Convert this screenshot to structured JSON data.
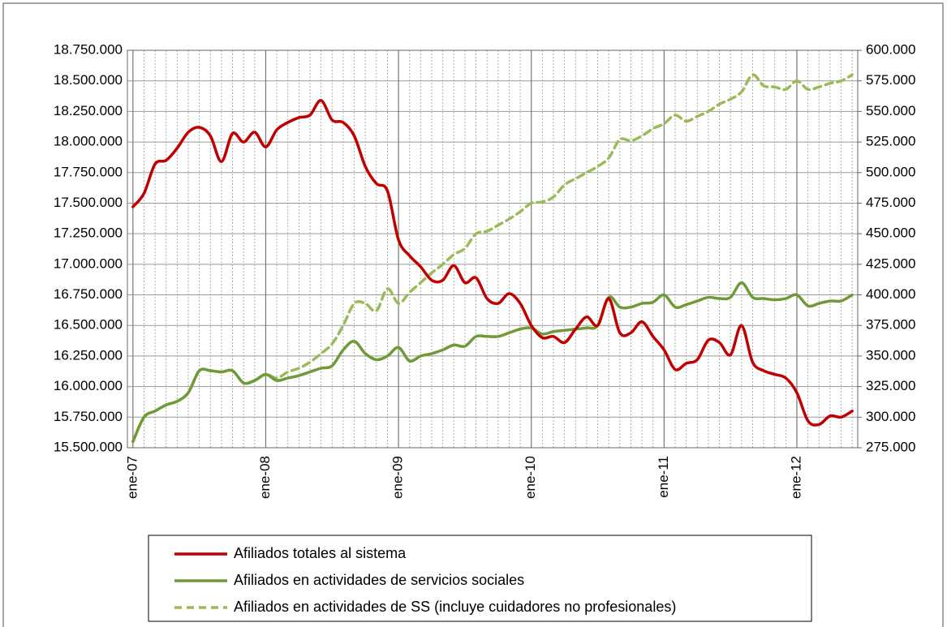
{
  "chart_data": {
    "type": "line",
    "categories": [
      "ene-07",
      null,
      null,
      null,
      null,
      null,
      null,
      null,
      null,
      null,
      null,
      null,
      "ene-08",
      null,
      null,
      null,
      null,
      null,
      null,
      null,
      null,
      null,
      null,
      null,
      "ene-09",
      null,
      null,
      null,
      null,
      null,
      null,
      null,
      null,
      null,
      null,
      null,
      "ene-10",
      null,
      null,
      null,
      null,
      null,
      null,
      null,
      null,
      null,
      null,
      null,
      "ene-11",
      null,
      null,
      null,
      null,
      null,
      null,
      null,
      null,
      null,
      null,
      null,
      "ene-12",
      null,
      null,
      null,
      null,
      null
    ],
    "ylim": [
      15500000,
      18750000
    ],
    "yticks": [
      {
        "value": 15500000,
        "label": "15.500.000"
      },
      {
        "value": 15750000,
        "label": "15.750.000"
      },
      {
        "value": 16000000,
        "label": "16.000.000"
      },
      {
        "value": 16250000,
        "label": "16.250.000"
      },
      {
        "value": 16500000,
        "label": "16.500.000"
      },
      {
        "value": 16750000,
        "label": "16.750.000"
      },
      {
        "value": 17000000,
        "label": "17.000.000"
      },
      {
        "value": 17250000,
        "label": "17.250.000"
      },
      {
        "value": 17500000,
        "label": "17.500.000"
      },
      {
        "value": 17750000,
        "label": "17.750.000"
      },
      {
        "value": 18000000,
        "label": "18.000.000"
      },
      {
        "value": 18250000,
        "label": "18.250.000"
      },
      {
        "value": 18500000,
        "label": "18.500.000"
      },
      {
        "value": 18750000,
        "label": "18.750.000"
      }
    ],
    "y2lim": [
      275000,
      600000
    ],
    "y2ticks": [
      {
        "value": 275000,
        "label": "275.000"
      },
      {
        "value": 300000,
        "label": "300.000"
      },
      {
        "value": 325000,
        "label": "325.000"
      },
      {
        "value": 350000,
        "label": "350.000"
      },
      {
        "value": 375000,
        "label": "375.000"
      },
      {
        "value": 400000,
        "label": "400.000"
      },
      {
        "value": 425000,
        "label": "425.000"
      },
      {
        "value": 450000,
        "label": "450.000"
      },
      {
        "value": 475000,
        "label": "475.000"
      },
      {
        "value": 500000,
        "label": "500.000"
      },
      {
        "value": 525000,
        "label": "525.000"
      },
      {
        "value": 550000,
        "label": "550.000"
      },
      {
        "value": 575000,
        "label": "575.000"
      },
      {
        "value": 600000,
        "label": "600.000"
      }
    ],
    "grid": true,
    "legend": "bottom",
    "series": [
      {
        "name": "Afiliados totales al sistema",
        "color": "#c00000",
        "style": "solid",
        "axis": "y",
        "values": [
          17470000,
          17580000,
          17820000,
          17850000,
          17950000,
          18080000,
          18120000,
          18050000,
          17840000,
          18070000,
          18000000,
          18080000,
          17960000,
          18100000,
          18160000,
          18200000,
          18220000,
          18340000,
          18180000,
          18160000,
          18050000,
          17800000,
          17660000,
          17600000,
          17200000,
          17070000,
          16980000,
          16870000,
          16870000,
          16990000,
          16850000,
          16890000,
          16720000,
          16680000,
          16760000,
          16680000,
          16500000,
          16400000,
          16410000,
          16360000,
          16470000,
          16570000,
          16500000,
          16720000,
          16440000,
          16440000,
          16530000,
          16410000,
          16300000,
          16140000,
          16190000,
          16220000,
          16380000,
          16360000,
          16260000,
          16500000,
          16200000,
          16130000,
          16100000,
          16070000,
          15950000,
          15720000,
          15690000,
          15760000,
          15750000,
          15800000
        ]
      },
      {
        "name": "Afiliados en actividades de servicios sociales",
        "color": "#6f9a37",
        "style": "solid",
        "axis": "y2",
        "values": [
          280000,
          300000,
          305000,
          310000,
          313000,
          320000,
          338000,
          338000,
          337000,
          338000,
          328000,
          330000,
          335000,
          330000,
          332000,
          334000,
          337000,
          340000,
          342000,
          355000,
          362000,
          352000,
          347000,
          350000,
          357000,
          346000,
          350000,
          352000,
          355000,
          359000,
          358000,
          366000,
          366000,
          366000,
          369000,
          372000,
          373000,
          368000,
          370000,
          371000,
          372000,
          373000,
          375000,
          398000,
          390000,
          390000,
          393000,
          394000,
          400000,
          390000,
          392000,
          395000,
          398000,
          397000,
          398000,
          410000,
          398000,
          397000,
          396000,
          397000,
          400000,
          391000,
          393000,
          395000,
          395000,
          400000
        ]
      },
      {
        "name": "Afiliados en actividades de SS (incluye cuidadores no profesionales)",
        "color": "#9bbb59",
        "style": "dashed",
        "axis": "y2",
        "values": [
          280000,
          300000,
          305000,
          310000,
          313000,
          320000,
          338000,
          338000,
          337000,
          338000,
          328000,
          330000,
          335000,
          332000,
          337000,
          340000,
          345000,
          352000,
          360000,
          375000,
          393000,
          393000,
          387000,
          405000,
          393000,
          402000,
          410000,
          418000,
          425000,
          433000,
          438000,
          450000,
          452000,
          457000,
          462000,
          468000,
          475000,
          476000,
          480000,
          490000,
          495000,
          500000,
          505000,
          512000,
          527000,
          526000,
          530000,
          536000,
          540000,
          547000,
          542000,
          546000,
          550000,
          556000,
          560000,
          566000,
          580000,
          571000,
          570000,
          568000,
          575000,
          568000,
          570000,
          573000,
          575000,
          580000
        ]
      }
    ]
  }
}
